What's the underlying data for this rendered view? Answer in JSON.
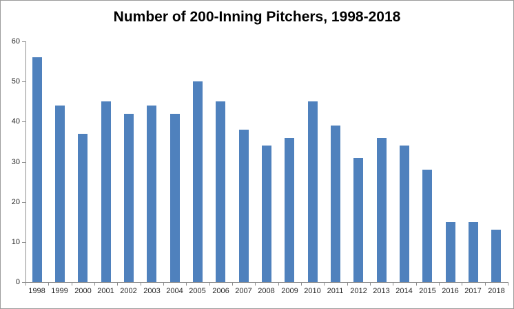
{
  "chart": {
    "title": "Number of 200-Inning Pitchers, 1998-2018"
  },
  "chart_data": {
    "type": "bar",
    "title": "Number of 200-Inning Pitchers, 1998-2018",
    "categories": [
      "1998",
      "1999",
      "2000",
      "2001",
      "2002",
      "2003",
      "2004",
      "2005",
      "2006",
      "2007",
      "2008",
      "2009",
      "2010",
      "2011",
      "2012",
      "2013",
      "2014",
      "2015",
      "2016",
      "2017",
      "2018"
    ],
    "values": [
      56,
      44,
      37,
      45,
      42,
      44,
      42,
      50,
      45,
      38,
      34,
      36,
      45,
      39,
      31,
      36,
      34,
      28,
      15,
      15,
      13
    ],
    "xlabel": "",
    "ylabel": "",
    "ylim": [
      0,
      60
    ],
    "yticks": [
      0,
      10,
      20,
      30,
      40,
      50,
      60
    ],
    "grid": false,
    "legend": "none",
    "colors": {
      "bar": "#4F81BD",
      "axis": "#8C8C8C",
      "tick_label": "#262626",
      "title": "#000000",
      "chart_border": "#9B9B9B",
      "background": "#FFFFFF"
    }
  }
}
